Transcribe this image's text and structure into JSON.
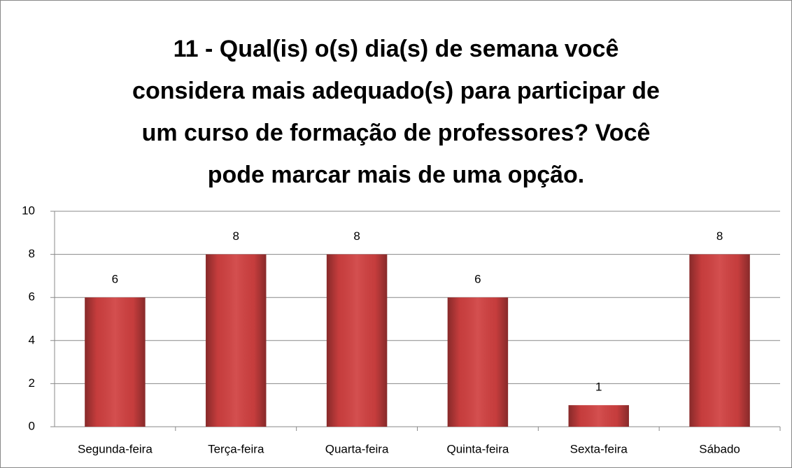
{
  "chart_data": {
    "type": "bar",
    "title": "11 - Qual(is) o(s) dia(s) de semana você considera mais adequado(s) para participar de um curso de formação de professores? Você pode marcar mais de uma opção.",
    "categories": [
      "Segunda-feira",
      "Terça-feira",
      "Quarta-feira",
      "Quinta-feira",
      "Sexta-feira",
      "Sábado"
    ],
    "values": [
      6,
      8,
      8,
      6,
      1,
      8
    ],
    "color": "#d04040",
    "ylim": [
      0,
      10
    ],
    "yticks": [
      0,
      2,
      4,
      6,
      8,
      10
    ],
    "grid": true
  }
}
